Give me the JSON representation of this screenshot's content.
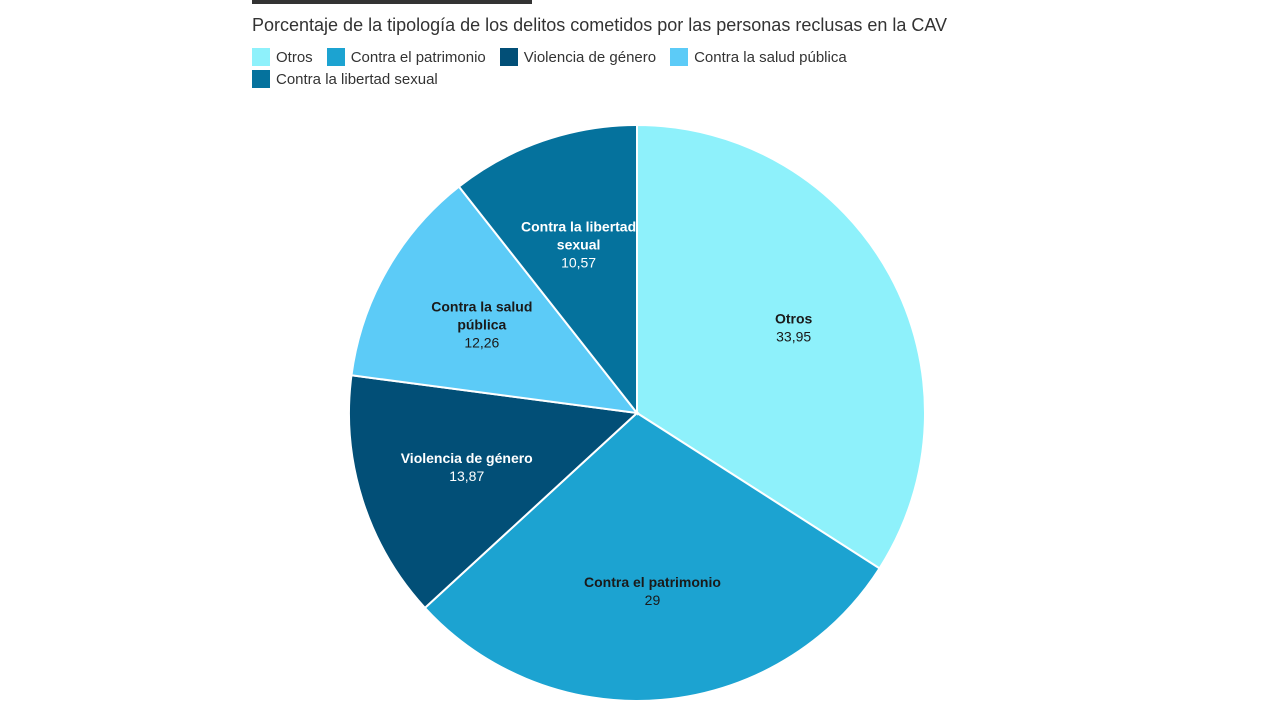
{
  "chart_data": {
    "type": "pie",
    "title": "",
    "subtitle": "Porcentaje de la tipología de los delitos cometidos por las personas reclusas en la CAV",
    "legend_position": "top-left",
    "slices": [
      {
        "name": "Otros",
        "value": 33.95,
        "value_label": "33,95",
        "color": "#8ef1fb",
        "label_lines": [
          "Otros"
        ],
        "text": "dark"
      },
      {
        "name": "Contra el patrimonio",
        "value": 29,
        "value_label": "29",
        "color": "#1ca3d1",
        "label_lines": [
          "Contra el patrimonio"
        ],
        "text": "dark"
      },
      {
        "name": "Violencia de género",
        "value": 13.87,
        "value_label": "13,87",
        "color": "#024f77",
        "label_lines": [
          "Violencia de género"
        ],
        "text": "light"
      },
      {
        "name": "Contra la salud pública",
        "value": 12.26,
        "value_label": "12,26",
        "color": "#5ccbf7",
        "label_lines": [
          "Contra la salud",
          "pública"
        ],
        "text": "dark"
      },
      {
        "name": "Contra la libertad sexual",
        "value": 10.57,
        "value_label": "10,57",
        "color": "#05729d",
        "label_lines": [
          "Contra la libertad",
          "sexual"
        ],
        "text": "light"
      }
    ]
  }
}
